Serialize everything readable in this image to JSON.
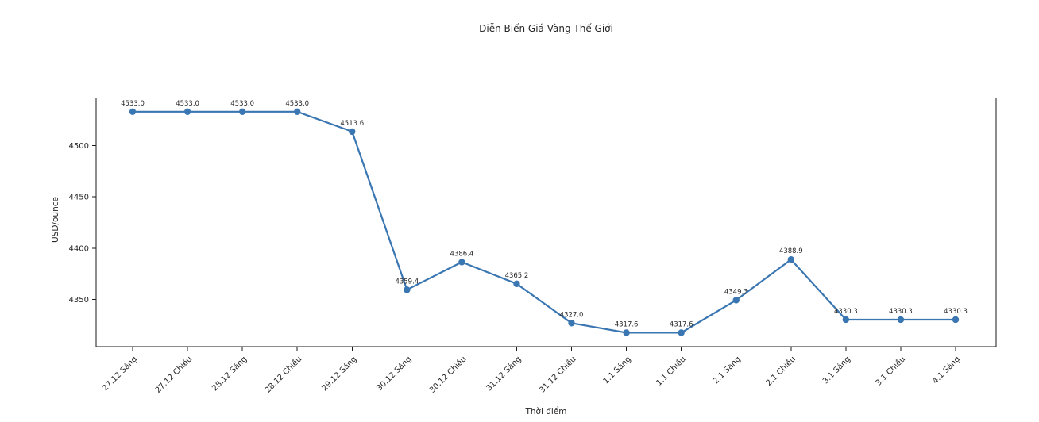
{
  "figure": {
    "background": "#ffffff"
  },
  "chart_data": {
    "type": "line",
    "title": "Diễn Biến Giá Vàng Thế Giới",
    "xlabel": "Thời điểm",
    "ylabel": "USD/ounce",
    "categories": [
      "27.12 Sáng",
      "27.12 Chiều",
      "28.12 Sáng",
      "28.12 Chiều",
      "29.12 Sáng",
      "30.12 Sáng",
      "30.12 Chiều",
      "31.12 Sáng",
      "31.12 Chiều",
      "1.1 Sáng",
      "1.1 Chiều",
      "2.1 Sáng",
      "2.1 Chiều",
      "3.1 Sáng",
      "3.1 Chiều",
      "4.1 Sáng"
    ],
    "values": [
      4533.0,
      4533.0,
      4533.0,
      4533.0,
      4513.6,
      4359.4,
      4386.4,
      4365.2,
      4327.0,
      4317.6,
      4317.6,
      4349.3,
      4388.9,
      4330.3,
      4330.3,
      4330.3
    ],
    "data_labels": [
      "4533.0",
      "4533.0",
      "4533.0",
      "4533.0",
      "4513.6",
      "4359.4",
      "4386.4",
      "4365.2",
      "4327.0",
      "4317.6",
      "4317.6",
      "4349.3",
      "4388.9",
      "4330.3",
      "4330.3",
      "4330.3"
    ],
    "yticks": [
      4350,
      4400,
      4450,
      4500
    ],
    "ylim": [
      4304,
      4546
    ],
    "xtick_rotation": 45,
    "grid": false,
    "legend": null,
    "line_color": "#3a76b1",
    "marker": "circle",
    "axis_color": "#1a1a1a",
    "text_color": "#262626"
  }
}
